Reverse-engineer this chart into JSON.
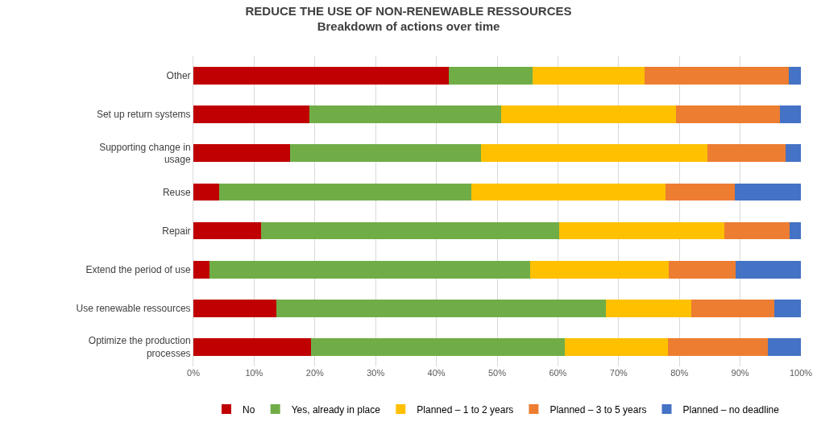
{
  "chart_data": {
    "type": "bar",
    "orientation": "horizontal",
    "stacked": true,
    "title": "REDUCE THE USE OF NON-RENEWABLE RESSOURCES",
    "subtitle": "Breakdown of actions over time",
    "categories": [
      "Other",
      "Set up return systems",
      "Supporting change in usage",
      "Reuse",
      "Repair",
      "Extend the period of use",
      "Use renewable ressources",
      "Optimize the production processes"
    ],
    "series": [
      {
        "name": "No",
        "color": "#c00000",
        "values": [
          42.1,
          19.1,
          15.9,
          4.3,
          11.1,
          2.6,
          13.7,
          19.4
        ]
      },
      {
        "name": "Yes, already in place",
        "color": "#70ad47",
        "values": [
          13.8,
          31.6,
          31.5,
          41.5,
          49.1,
          52.8,
          54.2,
          41.7
        ]
      },
      {
        "name": "Planned – 1 to 2 years",
        "color": "#ffc000",
        "values": [
          18.4,
          28.7,
          37.2,
          31.9,
          27.2,
          22.9,
          14.1,
          17.0
        ]
      },
      {
        "name": "Planned – 3 to 5 years",
        "color": "#ed7d31",
        "values": [
          23.7,
          17.2,
          12.9,
          11.4,
          10.7,
          11.0,
          13.6,
          16.4
        ]
      },
      {
        "name": "Planned – no deadline",
        "color": "#4472c4",
        "values": [
          2.0,
          3.4,
          2.5,
          10.9,
          1.9,
          10.7,
          4.4,
          5.5
        ]
      }
    ],
    "xlim": [
      0,
      100
    ],
    "xticks": [
      {
        "value": 0,
        "label": "0%"
      },
      {
        "value": 10,
        "label": "10%"
      },
      {
        "value": 20,
        "label": "20%"
      },
      {
        "value": 30,
        "label": "30%"
      },
      {
        "value": 40,
        "label": "40%"
      },
      {
        "value": 50,
        "label": "50%"
      },
      {
        "value": 60,
        "label": "60%"
      },
      {
        "value": 70,
        "label": "70%"
      },
      {
        "value": 80,
        "label": "80%"
      },
      {
        "value": 90,
        "label": "90%"
      },
      {
        "value": 100,
        "label": "100%"
      }
    ],
    "grid": "x",
    "legend": "bottom"
  }
}
